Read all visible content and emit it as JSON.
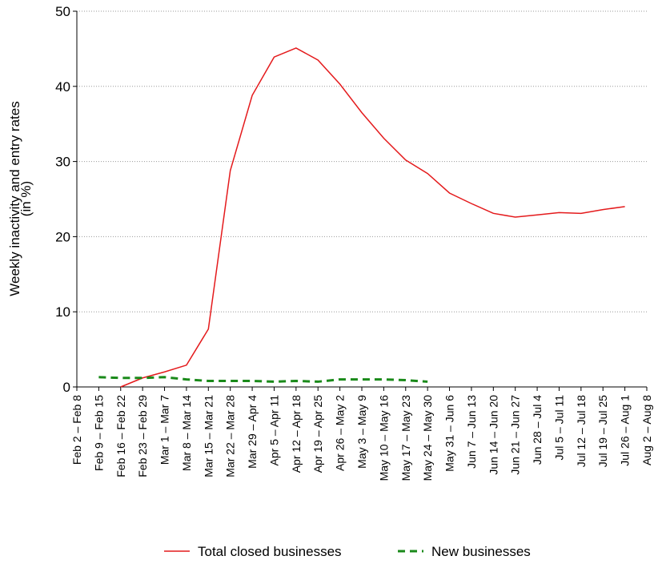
{
  "chart_data": {
    "type": "line",
    "ylabel": [
      "Weekly inactivity and entry rates",
      "(in %)"
    ],
    "categories": [
      "Feb 2 – Feb 8",
      "Feb 9 – Feb 15",
      "Feb 16 – Feb 22",
      "Feb 23 – Feb 29",
      "Mar 1 – Mar 7",
      "Mar 8 – Mar 14",
      "Mar 15 – Mar 21",
      "Mar 22 – Mar 28",
      "Mar 29 – Apr 4",
      "Apr 5 – Apr 11",
      "Apr 12 – Apr 18",
      "Apr 19 – Apr 25",
      "Apr 26 – May 2",
      "May 3 – May 9",
      "May 10 – May 16",
      "May 17 – May 23",
      "May 24 – May 30",
      "May 31 – Jun 6",
      "Jun 7 – Jun 13",
      "Jun 14 – Jun 20",
      "Jun 21 – Jun 27",
      "Jun 28 – Jul 4",
      "Jul 5 – Jul 11",
      "Jul 12 – Jul 18",
      "Jul 19 – Jul 25",
      "Jul 26 – Aug 1",
      "Aug 2 – Aug 8"
    ],
    "series": [
      {
        "name": "Total closed businesses",
        "color": "#e41a1c",
        "dash": false,
        "values": [
          null,
          null,
          0,
          1.2,
          2.0,
          2.9,
          7.7,
          28.8,
          38.8,
          43.9,
          45.1,
          43.5,
          40.3,
          36.5,
          33.1,
          30.2,
          28.4,
          25.8,
          24.4,
          23.1,
          22.6,
          22.9,
          23.2,
          23.1,
          23.6,
          24.0,
          null
        ]
      },
      {
        "name": "New businesses",
        "color": "#1a8a1a",
        "dash": true,
        "values": [
          null,
          1.3,
          1.2,
          1.2,
          1.3,
          1.0,
          0.8,
          0.8,
          0.8,
          0.7,
          0.8,
          0.7,
          1.0,
          1.0,
          1.0,
          0.9,
          0.7,
          null,
          null,
          null,
          null,
          null,
          null,
          null,
          null,
          null,
          null
        ]
      }
    ],
    "ylim": [
      0,
      50
    ],
    "yticks": [
      0,
      10,
      20,
      30,
      40,
      50
    ],
    "grid": true,
    "legend": "bottom"
  }
}
